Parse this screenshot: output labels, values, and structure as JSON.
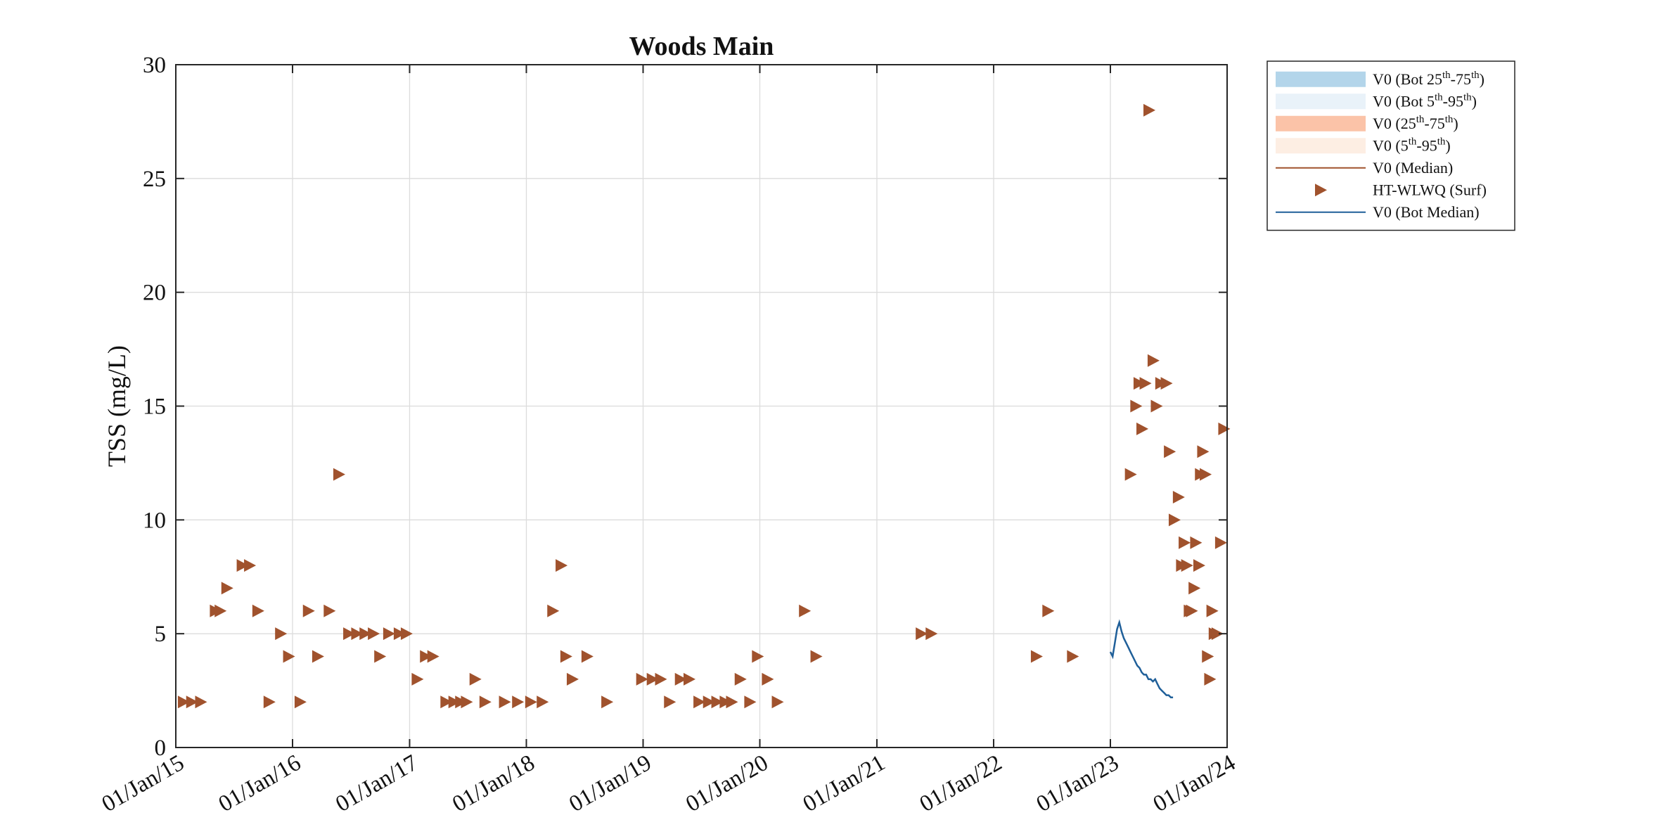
{
  "chart_data": {
    "type": "scatter",
    "title": "Woods Main",
    "xlabel": "",
    "ylabel": "TSS (mg/L)",
    "ylim": [
      0,
      30
    ],
    "xlim": [
      "2015-01-01",
      "2024-01-01"
    ],
    "yticks": [
      0,
      5,
      10,
      15,
      20,
      25,
      30
    ],
    "xticks": [
      {
        "date": "2015-01-01",
        "label": "01/Jan/15"
      },
      {
        "date": "2016-01-01",
        "label": "01/Jan/16"
      },
      {
        "date": "2017-01-01",
        "label": "01/Jan/17"
      },
      {
        "date": "2018-01-01",
        "label": "01/Jan/18"
      },
      {
        "date": "2019-01-01",
        "label": "01/Jan/19"
      },
      {
        "date": "2020-01-01",
        "label": "01/Jan/20"
      },
      {
        "date": "2021-01-01",
        "label": "01/Jan/21"
      },
      {
        "date": "2022-01-01",
        "label": "01/Jan/22"
      },
      {
        "date": "2023-01-01",
        "label": "01/Jan/23"
      },
      {
        "date": "2024-01-01",
        "label": "01/Jan/24"
      }
    ],
    "grid": true,
    "legend_position": "outside-top-right",
    "legend": [
      {
        "type": "patch",
        "color": "#b3d5ea",
        "parts": [
          {
            "t": "V0 (Bot 25"
          },
          {
            "t": "th",
            "sup": true
          },
          {
            "t": "-75"
          },
          {
            "t": "th",
            "sup": true
          },
          {
            "t": ")"
          }
        ]
      },
      {
        "type": "patch",
        "color": "#e9f2f9",
        "parts": [
          {
            "t": "V0 (Bot 5"
          },
          {
            "t": "th",
            "sup": true
          },
          {
            "t": "-95"
          },
          {
            "t": "th",
            "sup": true
          },
          {
            "t": ")"
          }
        ]
      },
      {
        "type": "patch",
        "color": "#fbc3a8",
        "parts": [
          {
            "t": "V0 (25"
          },
          {
            "t": "th",
            "sup": true
          },
          {
            "t": "-75"
          },
          {
            "t": "th",
            "sup": true
          },
          {
            "t": ")"
          }
        ]
      },
      {
        "type": "patch",
        "color": "#fdeee3",
        "parts": [
          {
            "t": "V0 (5"
          },
          {
            "t": "th",
            "sup": true
          },
          {
            "t": "-95"
          },
          {
            "t": "th",
            "sup": true
          },
          {
            "t": ")"
          }
        ]
      },
      {
        "type": "line",
        "color": "#a0522d",
        "parts": [
          {
            "t": "V0 (Median)"
          }
        ]
      },
      {
        "type": "marker",
        "color": "#a0522d",
        "parts": [
          {
            "t": "HT-WLWQ (Surf)"
          }
        ]
      },
      {
        "type": "line",
        "color": "#1f5f99",
        "parts": [
          {
            "t": "V0 (Bot Median)"
          }
        ]
      }
    ],
    "series": [
      {
        "name": "HT-WLWQ (Surf)",
        "kind": "marker",
        "color": "#a0522d",
        "points": [
          [
            "2015-01-25",
            2
          ],
          [
            "2015-02-20",
            2
          ],
          [
            "2015-03-20",
            2
          ],
          [
            "2015-05-05",
            6
          ],
          [
            "2015-05-20",
            6
          ],
          [
            "2015-06-10",
            7
          ],
          [
            "2015-07-28",
            8
          ],
          [
            "2015-08-20",
            8
          ],
          [
            "2015-09-15",
            6
          ],
          [
            "2015-10-20",
            2
          ],
          [
            "2015-11-25",
            5
          ],
          [
            "2015-12-20",
            4
          ],
          [
            "2016-01-25",
            2
          ],
          [
            "2016-02-20",
            6
          ],
          [
            "2016-03-20",
            4
          ],
          [
            "2016-04-25",
            6
          ],
          [
            "2016-05-25",
            12
          ],
          [
            "2016-06-25",
            5
          ],
          [
            "2016-07-20",
            5
          ],
          [
            "2016-08-15",
            5
          ],
          [
            "2016-09-10",
            5
          ],
          [
            "2016-09-30",
            4
          ],
          [
            "2016-10-28",
            5
          ],
          [
            "2016-11-30",
            5
          ],
          [
            "2016-12-22",
            5
          ],
          [
            "2017-01-25",
            3
          ],
          [
            "2017-02-20",
            4
          ],
          [
            "2017-03-15",
            4
          ],
          [
            "2017-04-25",
            2
          ],
          [
            "2017-05-20",
            2
          ],
          [
            "2017-06-10",
            2
          ],
          [
            "2017-06-28",
            2
          ],
          [
            "2017-07-25",
            3
          ],
          [
            "2017-08-25",
            2
          ],
          [
            "2017-10-25",
            2
          ],
          [
            "2017-12-05",
            2
          ],
          [
            "2018-01-15",
            2
          ],
          [
            "2018-02-20",
            2
          ],
          [
            "2018-03-25",
            6
          ],
          [
            "2018-04-20",
            8
          ],
          [
            "2018-05-05",
            4
          ],
          [
            "2018-05-25",
            3
          ],
          [
            "2018-07-10",
            4
          ],
          [
            "2018-09-10",
            2
          ],
          [
            "2018-12-28",
            3
          ],
          [
            "2019-01-30",
            3
          ],
          [
            "2019-02-25",
            3
          ],
          [
            "2019-03-25",
            2
          ],
          [
            "2019-04-28",
            3
          ],
          [
            "2019-05-25",
            3
          ],
          [
            "2019-06-25",
            2
          ],
          [
            "2019-07-25",
            2
          ],
          [
            "2019-08-20",
            2
          ],
          [
            "2019-09-15",
            2
          ],
          [
            "2019-10-05",
            2
          ],
          [
            "2019-11-01",
            3
          ],
          [
            "2019-12-01",
            2
          ],
          [
            "2019-12-25",
            4
          ],
          [
            "2020-01-25",
            3
          ],
          [
            "2020-02-25",
            2
          ],
          [
            "2020-05-20",
            6
          ],
          [
            "2020-06-25",
            4
          ],
          [
            "2021-05-20",
            5
          ],
          [
            "2021-06-20",
            5
          ],
          [
            "2022-05-15",
            4
          ],
          [
            "2022-06-20",
            6
          ],
          [
            "2022-09-05",
            4
          ],
          [
            "2023-03-05",
            12
          ],
          [
            "2023-03-22",
            15
          ],
          [
            "2023-04-01",
            16
          ],
          [
            "2023-04-10",
            14
          ],
          [
            "2023-04-20",
            16
          ],
          [
            "2023-05-02",
            28
          ],
          [
            "2023-05-15",
            17
          ],
          [
            "2023-05-25",
            15
          ],
          [
            "2023-06-08",
            16
          ],
          [
            "2023-06-25",
            16
          ],
          [
            "2023-07-05",
            13
          ],
          [
            "2023-07-20",
            10
          ],
          [
            "2023-08-02",
            11
          ],
          [
            "2023-08-12",
            8
          ],
          [
            "2023-08-20",
            9
          ],
          [
            "2023-08-28",
            8
          ],
          [
            "2023-09-05",
            6
          ],
          [
            "2023-09-12",
            6
          ],
          [
            "2023-09-20",
            7
          ],
          [
            "2023-09-25",
            9
          ],
          [
            "2023-10-05",
            8
          ],
          [
            "2023-10-10",
            12
          ],
          [
            "2023-10-17",
            13
          ],
          [
            "2023-10-25",
            12
          ],
          [
            "2023-11-01",
            4
          ],
          [
            "2023-11-08",
            3
          ],
          [
            "2023-11-15",
            6
          ],
          [
            "2023-11-22",
            5
          ],
          [
            "2023-12-01",
            5
          ],
          [
            "2023-12-12",
            9
          ],
          [
            "2023-12-22",
            14
          ]
        ]
      },
      {
        "name": "V0 (Bot Median)",
        "kind": "line",
        "color": "#1f5f99",
        "points": [
          [
            "2023-01-01",
            4.2
          ],
          [
            "2023-01-08",
            4.0
          ],
          [
            "2023-01-15",
            4.6
          ],
          [
            "2023-01-22",
            5.2
          ],
          [
            "2023-01-29",
            5.5
          ],
          [
            "2023-02-05",
            5.1
          ],
          [
            "2023-02-12",
            4.8
          ],
          [
            "2023-02-19",
            4.6
          ],
          [
            "2023-02-26",
            4.4
          ],
          [
            "2023-03-05",
            4.2
          ],
          [
            "2023-03-12",
            4.0
          ],
          [
            "2023-03-19",
            3.8
          ],
          [
            "2023-03-26",
            3.6
          ],
          [
            "2023-04-02",
            3.5
          ],
          [
            "2023-04-09",
            3.3
          ],
          [
            "2023-04-16",
            3.2
          ],
          [
            "2023-04-23",
            3.2
          ],
          [
            "2023-04-30",
            3.0
          ],
          [
            "2023-05-07",
            3.0
          ],
          [
            "2023-05-14",
            2.9
          ],
          [
            "2023-05-21",
            3.0
          ],
          [
            "2023-05-28",
            2.8
          ],
          [
            "2023-06-04",
            2.6
          ],
          [
            "2023-06-11",
            2.5
          ],
          [
            "2023-06-18",
            2.4
          ],
          [
            "2023-06-25",
            2.3
          ],
          [
            "2023-07-02",
            2.3
          ],
          [
            "2023-07-09",
            2.2
          ],
          [
            "2023-07-16",
            2.2
          ]
        ]
      }
    ]
  }
}
